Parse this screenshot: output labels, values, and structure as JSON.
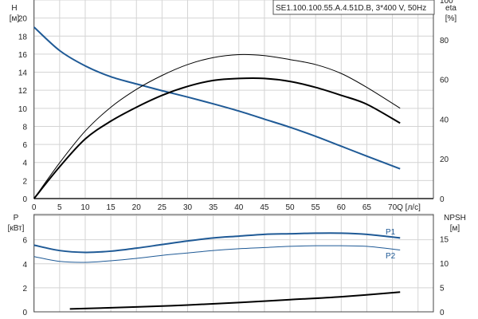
{
  "legend_title": "SE1.100.100.55.A.4.51D.B, 3*400 V, 50Hz",
  "chart_data": [
    {
      "type": "line",
      "xlabel": "Q [л/с]",
      "ylabel": "H",
      "yunit": "[м]",
      "y2label": "eta",
      "y2unit": "[%]",
      "xlim": [
        0,
        78
      ],
      "ylim": [
        0,
        22
      ],
      "y2lim": [
        0,
        100
      ],
      "x_ticks": [
        0,
        5,
        10,
        15,
        20,
        25,
        30,
        35,
        40,
        45,
        50,
        55,
        60,
        65,
        70
      ],
      "y_ticks": [
        0,
        2,
        4,
        6,
        8,
        10,
        12,
        14,
        16,
        18,
        20
      ],
      "y2_ticks": [
        0,
        20,
        40,
        60,
        80,
        100
      ],
      "grid": true,
      "x": [
        0,
        5,
        10,
        15,
        20,
        25,
        30,
        35,
        40,
        45,
        50,
        55,
        60,
        65,
        71.5
      ],
      "series": [
        {
          "key": "H",
          "axis": "left",
          "color": "#1f5a96",
          "width": 2,
          "values": [
            19,
            16.4,
            14.7,
            13.5,
            12.7,
            11.95,
            11.25,
            10.5,
            9.7,
            8.8,
            7.9,
            6.9,
            5.8,
            4.7,
            3.3
          ]
        },
        {
          "key": "eta1",
          "axis": "right",
          "color": "#000000",
          "width": 1,
          "values": [
            0,
            18,
            34,
            46,
            55,
            62,
            67.5,
            71,
            72.5,
            72,
            70,
            67.5,
            63,
            56,
            45.5
          ]
        },
        {
          "key": "eta2",
          "axis": "right",
          "color": "#000000",
          "width": 2,
          "values": [
            0,
            16,
            30,
            39,
            46,
            52,
            56.5,
            59.5,
            60.5,
            60.5,
            59,
            56,
            52,
            47.5,
            38
          ]
        }
      ]
    },
    {
      "type": "line",
      "ylabel": "P",
      "yunit": "[кВт]",
      "y2label": "NPSH",
      "y2unit": "[м]",
      "xlim": [
        0,
        78
      ],
      "ylim": [
        0,
        8.1
      ],
      "y2lim": [
        0,
        20
      ],
      "y_ticks": [
        0,
        2,
        4,
        6
      ],
      "y2_ticks": [
        0,
        5,
        10,
        15
      ],
      "grid": true,
      "series": [
        {
          "name": "P1",
          "axis": "left",
          "color": "#1f5a96",
          "width": 2,
          "x": [
            0,
            5,
            10,
            15,
            20,
            25,
            30,
            35,
            40,
            45,
            50,
            55,
            60,
            65,
            71.5
          ],
          "values": [
            5.55,
            5.1,
            4.95,
            5.05,
            5.3,
            5.6,
            5.9,
            6.15,
            6.3,
            6.45,
            6.5,
            6.55,
            6.55,
            6.45,
            6.15
          ]
        },
        {
          "name": "P2",
          "axis": "left",
          "color": "#1f5a96",
          "width": 1,
          "x": [
            0,
            5,
            10,
            15,
            20,
            25,
            30,
            35,
            40,
            45,
            50,
            55,
            60,
            65,
            71.5
          ],
          "values": [
            4.6,
            4.2,
            4.12,
            4.25,
            4.45,
            4.7,
            4.9,
            5.1,
            5.25,
            5.35,
            5.45,
            5.5,
            5.5,
            5.45,
            5.15
          ]
        },
        {
          "key": "NPSH",
          "axis": "right",
          "color": "#000000",
          "width": 2,
          "x": [
            7,
            20,
            30,
            40,
            50,
            60,
            71.5
          ],
          "values": [
            0.6,
            1.0,
            1.4,
            1.9,
            2.5,
            3.1,
            4.05
          ]
        }
      ]
    }
  ]
}
